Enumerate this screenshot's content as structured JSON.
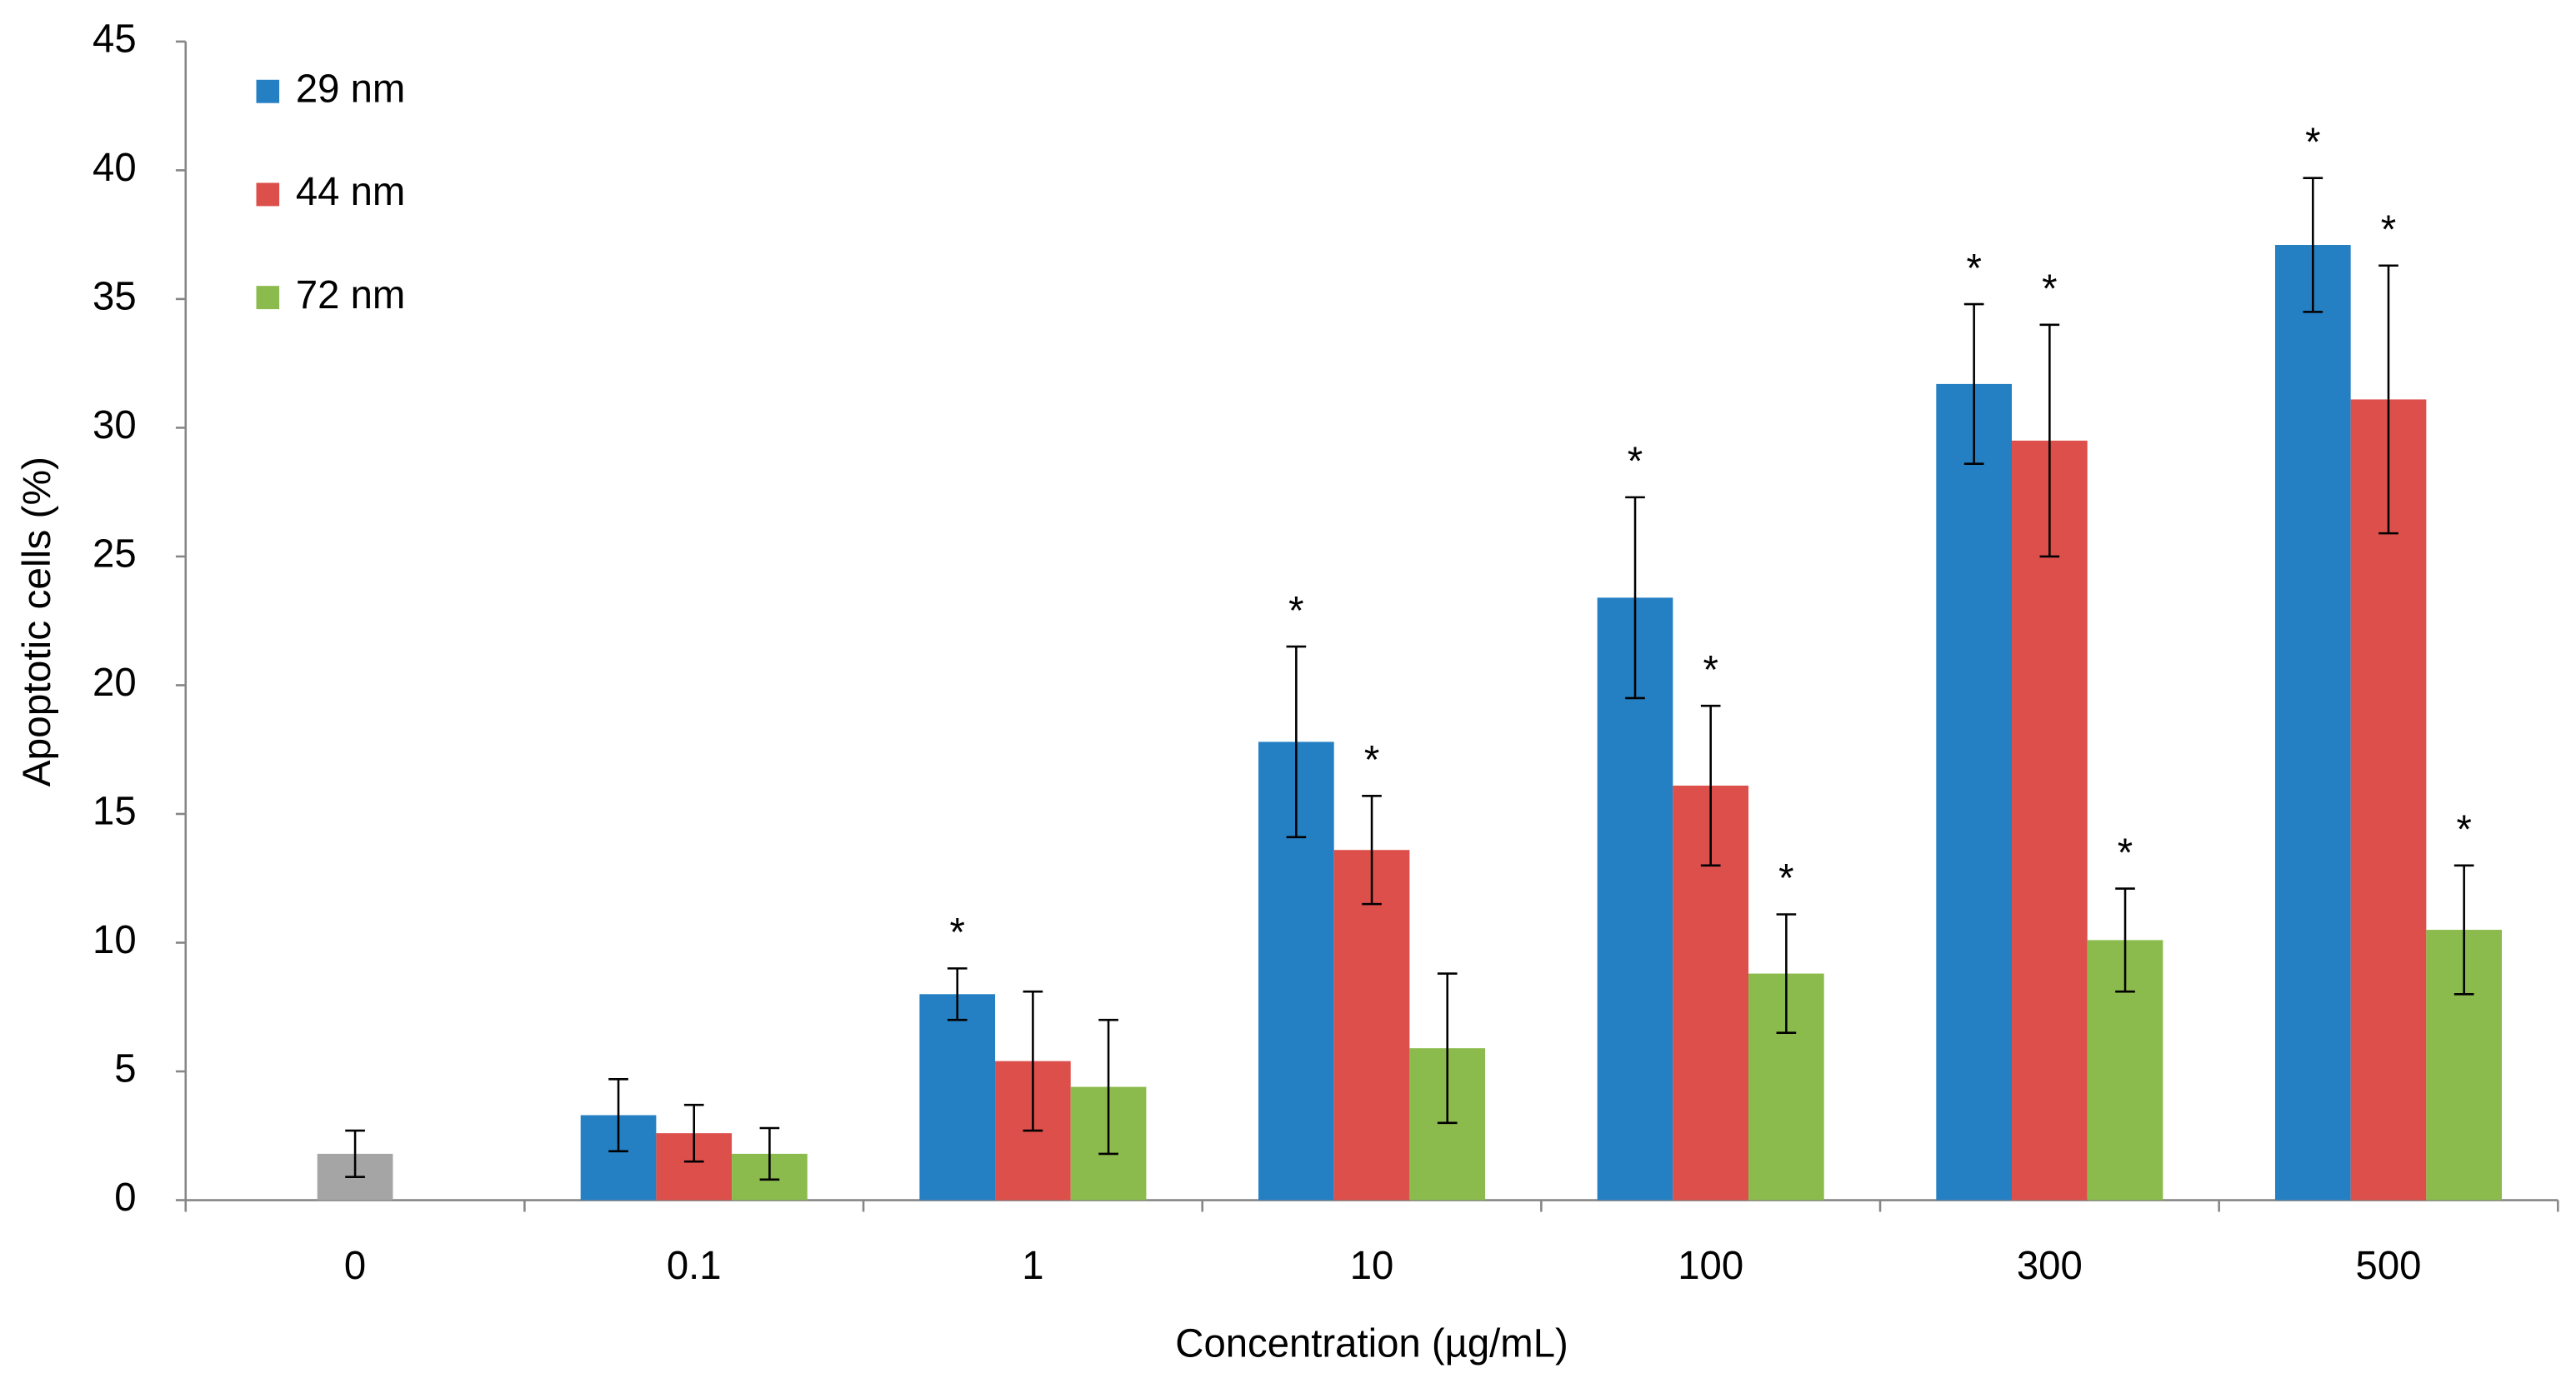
{
  "chart_data": {
    "type": "bar",
    "x_label": "Concentration (µg/mL)",
    "y_label": "Apoptotic cells (%)",
    "categories": [
      "0",
      "0.1",
      "1",
      "10",
      "100",
      "300",
      "500"
    ],
    "control": {
      "color": "#a5a5a5",
      "values": [
        1.8,
        null,
        null,
        null,
        null,
        null,
        null
      ],
      "errors": [
        0.9,
        null,
        null,
        null,
        null,
        null,
        null
      ]
    },
    "series": [
      {
        "name": "29 nm",
        "color": "#2580c3",
        "values": [
          null,
          3.3,
          8.0,
          17.8,
          23.4,
          31.7,
          37.1
        ],
        "errors": [
          null,
          1.4,
          1.0,
          3.7,
          3.9,
          3.1,
          2.6
        ],
        "significance": [
          null,
          null,
          "*",
          "*",
          "*",
          "*",
          "*"
        ]
      },
      {
        "name": "44 nm",
        "color": "#dd4f4b",
        "values": [
          null,
          2.6,
          5.4,
          13.6,
          16.1,
          29.5,
          31.1
        ],
        "errors": [
          null,
          1.1,
          2.7,
          2.1,
          3.1,
          4.5,
          5.2
        ],
        "significance": [
          null,
          null,
          null,
          "*",
          "*",
          "*",
          "*"
        ]
      },
      {
        "name": "72 nm",
        "color": "#8cbb4d",
        "values": [
          null,
          1.8,
          4.4,
          5.9,
          8.8,
          10.1,
          10.5
        ],
        "errors": [
          null,
          1.0,
          2.6,
          2.9,
          2.3,
          2.0,
          2.5
        ],
        "significance": [
          null,
          null,
          null,
          null,
          "*",
          "*",
          "*"
        ]
      }
    ],
    "ylim": [
      0,
      45
    ],
    "yticks": [
      0,
      5,
      10,
      15,
      20,
      25,
      30,
      35,
      40,
      45
    ],
    "grid": false,
    "legend": "top-left"
  }
}
